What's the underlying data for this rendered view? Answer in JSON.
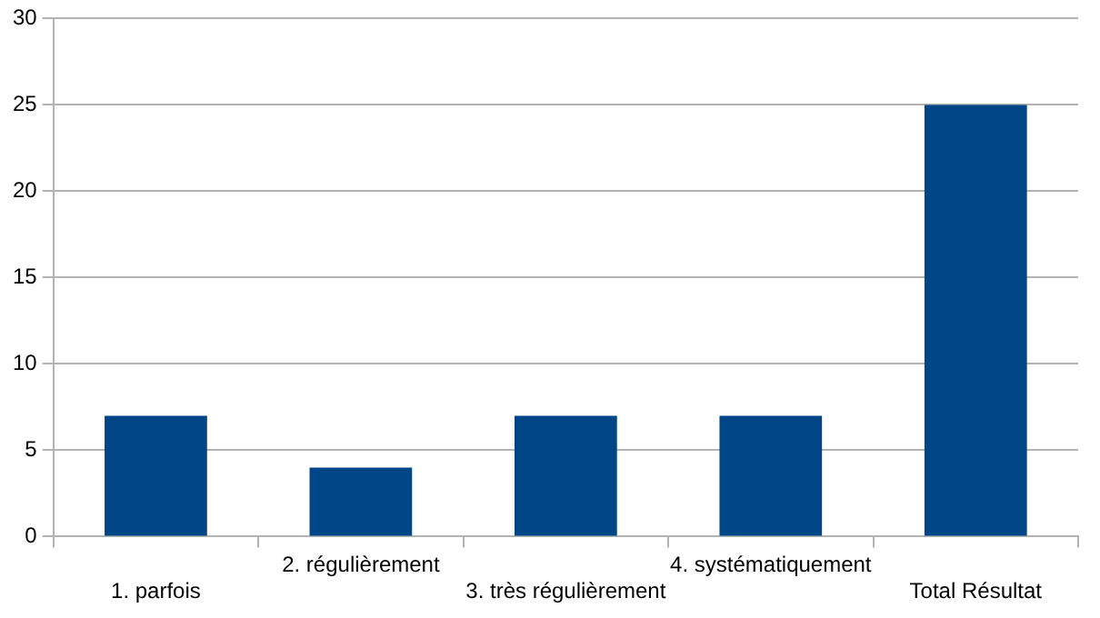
{
  "chart_data": {
    "type": "bar",
    "categories": [
      "1. parfois",
      "2. régulièrement",
      "3. très régulièrement",
      "4. systématiquement",
      "Total Résultat"
    ],
    "values": [
      7,
      4,
      7,
      7,
      25
    ],
    "color": "#004586",
    "ylim": [
      0,
      30
    ],
    "yticks": [
      0,
      5,
      10,
      15,
      20,
      25,
      30
    ],
    "grid": "y",
    "legend": false
  }
}
